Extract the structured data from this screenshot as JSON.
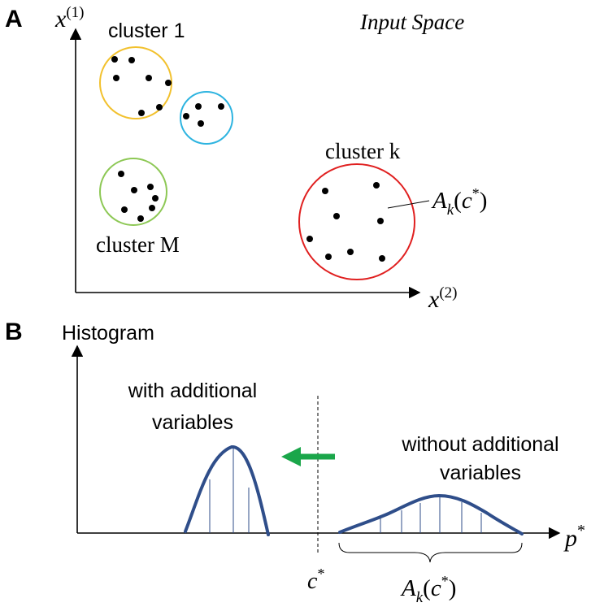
{
  "panel_a": {
    "letter": "A",
    "title": "Input Space",
    "y_axis_label": {
      "base": "x",
      "sup": "(1)"
    },
    "x_axis_label": {
      "base": "x",
      "sup": "(2)"
    },
    "cluster_1_label": "cluster 1",
    "cluster_k_label": "cluster k",
    "cluster_m_label": "cluster M",
    "ak_label": {
      "base": "A",
      "sub": "k",
      "arg_open": "(",
      "arg": "c",
      "arg_sup": "*",
      "arg_close": ")"
    },
    "colors": {
      "cluster_1": "#f2c12e",
      "cluster_blue": "#2eb4e0",
      "cluster_m": "#8dc855",
      "cluster_k": "#e02020"
    }
  },
  "panel_b": {
    "letter": "B",
    "y_axis_label": "Histogram",
    "with_label_line1": "with additional",
    "with_label_line2": "variables",
    "without_label_line1": "without additional",
    "without_label_line2": "variables",
    "threshold_label": {
      "base": "c",
      "sup": "*"
    },
    "x_axis_label": {
      "base": "p",
      "sup": "*"
    },
    "ak_label": {
      "base": "A",
      "sub": "k",
      "arg_open": "(",
      "arg": "c",
      "arg_sup": "*",
      "arg_close": ")"
    },
    "colors": {
      "curve": "#2f4e8a",
      "arrow": "#1aa64a"
    }
  }
}
